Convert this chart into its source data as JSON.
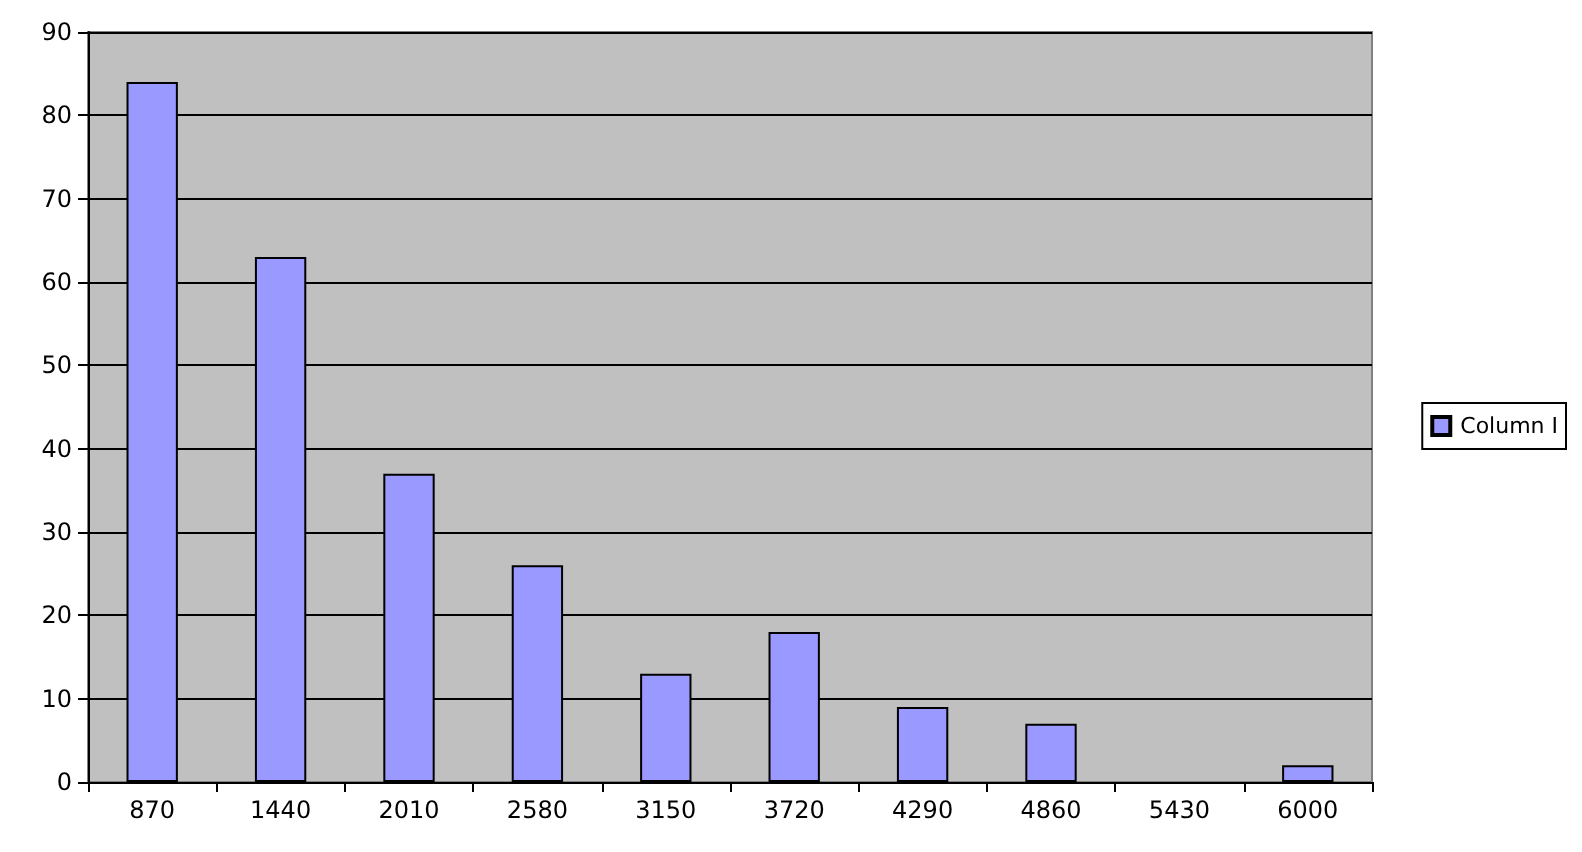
{
  "chart_data": {
    "type": "bar",
    "categories": [
      "870",
      "1440",
      "2010",
      "2580",
      "3150",
      "3720",
      "4290",
      "4860",
      "5430",
      "6000"
    ],
    "series": [
      {
        "name": "Column I",
        "color": "#9999ff",
        "values": [
          84,
          63,
          37,
          26,
          13,
          18,
          9,
          7,
          null,
          2
        ]
      }
    ],
    "ylim": [
      0,
      90
    ],
    "yticks": [
      0,
      10,
      20,
      30,
      40,
      50,
      60,
      70,
      80,
      90
    ],
    "grid": "y",
    "legend": "right"
  }
}
